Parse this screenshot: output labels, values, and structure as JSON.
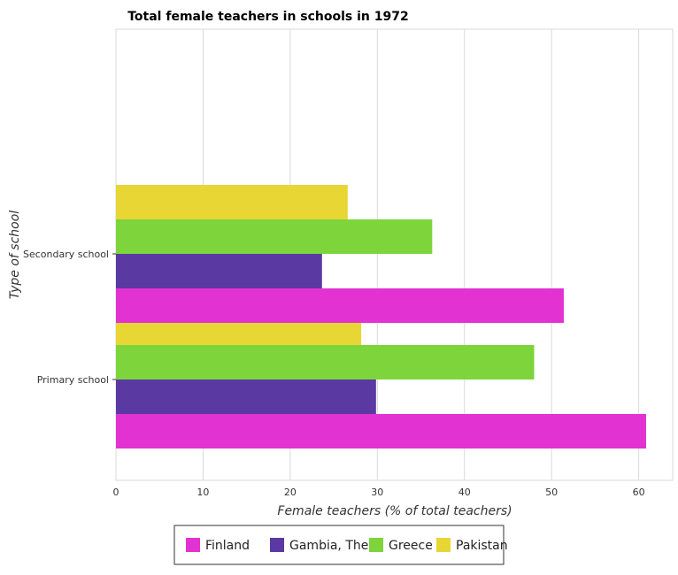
{
  "chart_data": {
    "type": "bar",
    "orientation": "horizontal",
    "title": "Total female teachers in schools in 1972",
    "xlabel": "Female teachers (% of total teachers)",
    "ylabel": "Type of school",
    "categories": [
      "Primary school",
      "Secondary school"
    ],
    "series": [
      {
        "name": "Finland",
        "color": "#e332d2",
        "values": [
          60.85,
          51.4
        ]
      },
      {
        "name": "Gambia, The",
        "color": "#5a39a3",
        "values": [
          29.85,
          23.65
        ]
      },
      {
        "name": "Greece",
        "color": "#7dd43b",
        "values": [
          48.0,
          36.3
        ]
      },
      {
        "name": "Pakistan",
        "color": "#e8d634",
        "values": [
          28.15,
          26.6
        ]
      }
    ],
    "xlim": [
      0,
      63.9
    ],
    "xticks": [
      0,
      10,
      20,
      30,
      40,
      50,
      60
    ],
    "grid": true,
    "legend_position": "bottom"
  }
}
